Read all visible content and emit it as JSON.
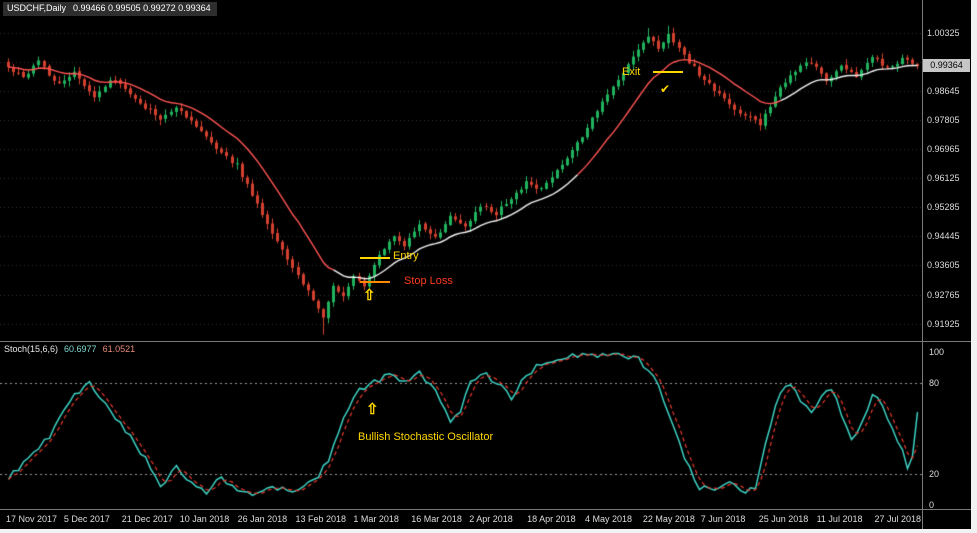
{
  "colors": {
    "bull": "#21b35e",
    "bear": "#d3402f",
    "ma_up": "#f2f2f2",
    "ma_down": "#ff5454",
    "stoch_k": "#3dd2c4",
    "stoch_d": "#e8392b",
    "grid": "#303030",
    "level": "#969696",
    "yellow": "#ffd700",
    "orange": "#ff8a00",
    "stop_text": "#ff3b1c",
    "axis_text": "#dcdcdc",
    "tag_bg": "#c6c6c6"
  },
  "main_chart": {
    "symbol_title": "USDCHF,Daily",
    "ohlc": "0.99466 0.99505 0.99272 0.99364",
    "current_price": "0.99364",
    "price_labels": [
      "1.00325",
      "0.99485",
      "0.98645",
      "0.97805",
      "0.96965",
      "0.96125",
      "0.95285",
      "0.94445",
      "0.93605",
      "0.92765",
      "0.91925"
    ]
  },
  "stoch": {
    "label": "Stoch(15,6,6)",
    "k_value": "60.6977",
    "d_value": "61.0521",
    "levels": [
      100,
      80,
      20,
      0
    ]
  },
  "annotations": {
    "entry": "Entry",
    "stop_loss": "Stop Loss",
    "exit": "Exit",
    "bullish_note": "Bullish Stochastic Oscillator",
    "up_arrow": "⇧",
    "check_mark": "✔"
  },
  "chart_data": [
    {
      "type": "candlestick",
      "title": "USDCHF Daily",
      "bars": 180,
      "y_range": [
        0.9151,
        1.0116
      ],
      "x_labels": [
        "17 Nov 2017",
        "5 Dec 2017",
        "21 Dec 2017",
        "10 Jan 2018",
        "26 Jan 2018",
        "13 Feb 2018",
        "1 Mar 2018",
        "16 Mar 2018",
        "2 Apr 2018",
        "18 Apr 2018",
        "4 May 2018",
        "22 May 2018",
        "7 Jun 2018",
        "25 Jun 2018",
        "11 Jul 2018",
        "27 Jul 2018"
      ],
      "price_anchors": [
        [
          0,
          0.9935
        ],
        [
          3,
          0.9905
        ],
        [
          6,
          0.9948
        ],
        [
          10,
          0.9882
        ],
        [
          13,
          0.9918
        ],
        [
          17,
          0.9852
        ],
        [
          21,
          0.9902
        ],
        [
          26,
          0.9832
        ],
        [
          30,
          0.9782
        ],
        [
          33,
          0.982
        ],
        [
          37,
          0.9762
        ],
        [
          41,
          0.9702
        ],
        [
          45,
          0.965
        ],
        [
          48,
          0.9562
        ],
        [
          51,
          0.9482
        ],
        [
          54,
          0.9402
        ],
        [
          57,
          0.9332
        ],
        [
          60,
          0.9262
        ],
        [
          62,
          0.9212
        ],
        [
          64,
          0.93
        ],
        [
          66,
          0.9268
        ],
        [
          68,
          0.933
        ],
        [
          70,
          0.9302
        ],
        [
          73,
          0.939
        ],
        [
          76,
          0.945
        ],
        [
          78,
          0.9422
        ],
        [
          81,
          0.948
        ],
        [
          84,
          0.9442
        ],
        [
          87,
          0.95
        ],
        [
          90,
          0.9472
        ],
        [
          93,
          0.953
        ],
        [
          96,
          0.9512
        ],
        [
          99,
          0.9558
        ],
        [
          102,
          0.96
        ],
        [
          105,
          0.9582
        ],
        [
          108,
          0.964
        ],
        [
          111,
          0.969
        ],
        [
          114,
          0.9758
        ],
        [
          117,
          0.983
        ],
        [
          120,
          0.99
        ],
        [
          123,
          0.9968
        ],
        [
          126,
          1.0018
        ],
        [
          128,
          0.9992
        ],
        [
          130,
          1.0026
        ],
        [
          133,
          0.997
        ],
        [
          136,
          0.9912
        ],
        [
          139,
          0.987
        ],
        [
          142,
          0.9822
        ],
        [
          145,
          0.9792
        ],
        [
          148,
          0.9772
        ],
        [
          151,
          0.985
        ],
        [
          154,
          0.9908
        ],
        [
          157,
          0.9948
        ],
        [
          159,
          0.9928
        ],
        [
          161,
          0.9892
        ],
        [
          164,
          0.9938
        ],
        [
          167,
          0.9902
        ],
        [
          170,
          0.9966
        ],
        [
          173,
          0.993
        ],
        [
          176,
          0.9958
        ],
        [
          179,
          0.99364
        ]
      ],
      "ma_segments": [
        {
          "from": 0,
          "to": 64,
          "color": "#ff5454"
        },
        {
          "from": 64,
          "to": 112,
          "color": "#f2f2f2"
        },
        {
          "from": 112,
          "to": 152,
          "color": "#ff5454"
        },
        {
          "from": 152,
          "to": 179,
          "color": "#f2f2f2"
        }
      ]
    },
    {
      "type": "line",
      "name": "Stoch(15,6,6)",
      "y_range": [
        0,
        100
      ],
      "levels": [
        80,
        20
      ],
      "last_values": {
        "k": 60.6977,
        "d": 61.0521
      },
      "k_anchors": [
        [
          0,
          18
        ],
        [
          4,
          30
        ],
        [
          8,
          45
        ],
        [
          12,
          68
        ],
        [
          16,
          80
        ],
        [
          20,
          60
        ],
        [
          24,
          45
        ],
        [
          28,
          25
        ],
        [
          30,
          12
        ],
        [
          33,
          25
        ],
        [
          36,
          15
        ],
        [
          39,
          8
        ],
        [
          42,
          18
        ],
        [
          45,
          10
        ],
        [
          48,
          6
        ],
        [
          52,
          12
        ],
        [
          56,
          8
        ],
        [
          60,
          15
        ],
        [
          63,
          30
        ],
        [
          66,
          55
        ],
        [
          69,
          75
        ],
        [
          72,
          80
        ],
        [
          75,
          85
        ],
        [
          78,
          80
        ],
        [
          81,
          86
        ],
        [
          84,
          75
        ],
        [
          87,
          55
        ],
        [
          89,
          62
        ],
        [
          91,
          80
        ],
        [
          94,
          85
        ],
        [
          97,
          78
        ],
        [
          99,
          70
        ],
        [
          101,
          80
        ],
        [
          104,
          92
        ],
        [
          108,
          96
        ],
        [
          112,
          98
        ],
        [
          116,
          97
        ],
        [
          120,
          98
        ],
        [
          124,
          95
        ],
        [
          127,
          85
        ],
        [
          130,
          60
        ],
        [
          133,
          30
        ],
        [
          136,
          12
        ],
        [
          139,
          8
        ],
        [
          142,
          14
        ],
        [
          145,
          8
        ],
        [
          147,
          12
        ],
        [
          149,
          40
        ],
        [
          152,
          75
        ],
        [
          154,
          80
        ],
        [
          156,
          68
        ],
        [
          158,
          60
        ],
        [
          160,
          72
        ],
        [
          162,
          76
        ],
        [
          164,
          60
        ],
        [
          166,
          42
        ],
        [
          168,
          55
        ],
        [
          170,
          72
        ],
        [
          172,
          65
        ],
        [
          174,
          50
        ],
        [
          176,
          35
        ],
        [
          177,
          22
        ],
        [
          178,
          32
        ],
        [
          179,
          61
        ]
      ]
    }
  ]
}
